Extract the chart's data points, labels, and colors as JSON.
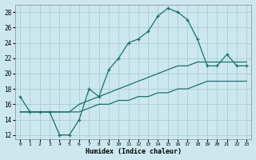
{
  "xlabel": "Humidex (Indice chaleur)",
  "bg_color": "#cce8ee",
  "grid_color": "#aaccd4",
  "line_color": "#1a7070",
  "x_values": [
    0,
    1,
    2,
    3,
    4,
    5,
    6,
    7,
    8,
    9,
    10,
    11,
    12,
    13,
    14,
    15,
    16,
    17,
    18,
    19,
    20,
    21,
    22,
    23
  ],
  "y_main": [
    17,
    15,
    15,
    15,
    12,
    12,
    14,
    18,
    17,
    20.5,
    22,
    24,
    24.5,
    25.5,
    27.5,
    28.5,
    28,
    27,
    24.5,
    21,
    21,
    22.5,
    21,
    21
  ],
  "y_low": [
    15,
    15,
    15,
    15,
    15,
    15,
    15,
    15.5,
    16,
    16,
    16.5,
    16.5,
    17,
    17,
    17.5,
    17.5,
    18,
    18,
    18.5,
    19,
    19,
    19,
    19,
    19
  ],
  "y_high": [
    15,
    15,
    15,
    15,
    15,
    15,
    16,
    16.5,
    17,
    17.5,
    18,
    18.5,
    19,
    19.5,
    20,
    20.5,
    21,
    21,
    21.5,
    21.5,
    21.5,
    21.5,
    21.5,
    21.5
  ],
  "ylim": [
    11.5,
    29
  ],
  "yticks": [
    12,
    14,
    16,
    18,
    20,
    22,
    24,
    26,
    28
  ],
  "xlim": [
    -0.5,
    23.5
  ],
  "xtick_labels": [
    "0",
    "1",
    "2",
    "3",
    "4",
    "5",
    "6",
    "7",
    "8",
    "9",
    "10",
    "11",
    "12",
    "13",
    "14",
    "15",
    "16",
    "17",
    "18",
    "19",
    "20",
    "21",
    "22",
    "23"
  ]
}
